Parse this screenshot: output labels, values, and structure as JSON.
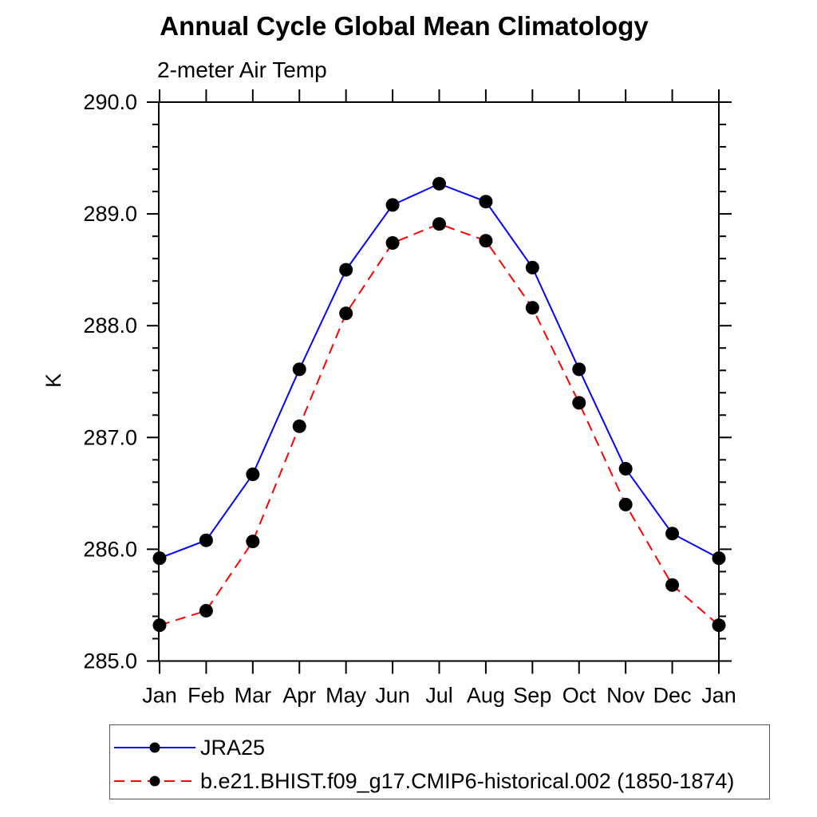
{
  "chart_data": {
    "type": "line",
    "title": "Annual Cycle Global Mean Climatology",
    "subtitle": "2-meter Air Temp",
    "xlabel": "",
    "ylabel": "K",
    "x_tick_labels": [
      "Jan",
      "Feb",
      "Mar",
      "Apr",
      "May",
      "Jun",
      "Jul",
      "Aug",
      "Sep",
      "Oct",
      "Nov",
      "Dec",
      "Jan"
    ],
    "y_tick_labels": [
      "285.0",
      "286.0",
      "287.0",
      "288.0",
      "289.0",
      "290.0"
    ],
    "ylim": [
      285.0,
      290.0
    ],
    "y_major_step": 1.0,
    "y_minor_step": 0.2,
    "grid": false,
    "axis_color": "#000000",
    "legend_position": "bottom-left",
    "series": [
      {
        "name": "JRA25",
        "color": "#0000ff",
        "line_style": "solid",
        "marker": "filled-circle",
        "marker_color": "#000000",
        "values": [
          285.92,
          286.08,
          286.67,
          287.61,
          288.5,
          289.08,
          289.27,
          289.11,
          288.52,
          287.61,
          286.72,
          286.14,
          285.92
        ]
      },
      {
        "name": "b.e21.BHIST.f09_g17.CMIP6-historical.002 (1850-1874)",
        "color": "#ff0000",
        "line_style": "dashed",
        "marker": "filled-circle",
        "marker_color": "#000000",
        "values": [
          285.32,
          285.45,
          286.07,
          287.1,
          288.11,
          288.74,
          288.91,
          288.76,
          288.16,
          287.31,
          286.4,
          285.68,
          285.32
        ]
      }
    ]
  }
}
